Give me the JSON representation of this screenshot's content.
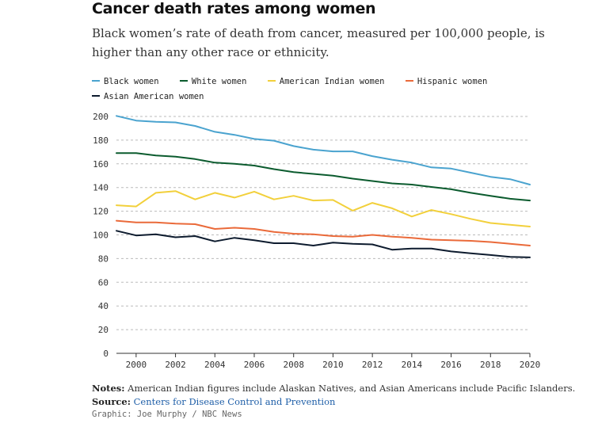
{
  "title": "Cancer death rates among women",
  "subtitle": "Black women’s rate of death from cancer, measured per 100,000 people, is higher than any other race or ethnicity.",
  "notes": {
    "notes_label": "Notes:",
    "notes_text": " American Indian figures include Alaskan Natives, and Asian Americans include Pacific Islanders.",
    "source_label": "Source:",
    "source_text": "Centers for Disease Control and Prevention"
  },
  "credit": "Graphic: Joe Murphy / NBC News",
  "chart_data": {
    "type": "line",
    "title": "Cancer death rates among women",
    "xlabel": "",
    "ylabel": "",
    "xlim": [
      1999,
      2020
    ],
    "ylim": [
      0,
      200
    ],
    "x_ticks": [
      2000,
      2002,
      2004,
      2006,
      2008,
      2010,
      2012,
      2014,
      2016,
      2018,
      2020
    ],
    "y_ticks": [
      0,
      20,
      40,
      60,
      80,
      100,
      120,
      140,
      160,
      180,
      200
    ],
    "grid": true,
    "legend_position": "top",
    "x": [
      1999,
      2000,
      2001,
      2002,
      2003,
      2004,
      2005,
      2006,
      2007,
      2008,
      2009,
      2010,
      2011,
      2012,
      2013,
      2014,
      2015,
      2016,
      2017,
      2018,
      2019,
      2020
    ],
    "series": [
      {
        "name": "Black women",
        "color": "#4aa3cf",
        "values": [
          200.5,
          196.5,
          195.5,
          195,
          192,
          187,
          184.5,
          181,
          179.5,
          175,
          172,
          170.5,
          170.5,
          166.5,
          163.5,
          161,
          157,
          156,
          152.5,
          149,
          147,
          142.5
        ]
      },
      {
        "name": "White women",
        "color": "#0b5b2e",
        "values": [
          169,
          169,
          167,
          166,
          164,
          161,
          160,
          158.5,
          155.5,
          153,
          151.5,
          150,
          147.5,
          145.5,
          143.5,
          142.5,
          140.5,
          138.5,
          135.5,
          133,
          130.5,
          129
        ]
      },
      {
        "name": "American Indian women",
        "color": "#f2d03b",
        "values": [
          125,
          124,
          135.5,
          137,
          130,
          135.5,
          131.5,
          136.5,
          130,
          133,
          129,
          129.5,
          120.5,
          127,
          122.5,
          115.5,
          121,
          117.5,
          113.5,
          110,
          108.5,
          107
        ]
      },
      {
        "name": "Hispanic women",
        "color": "#ea6a3a",
        "values": [
          112,
          110.5,
          110.5,
          109.5,
          109,
          105,
          106,
          105,
          102.5,
          101,
          100.5,
          99,
          98.5,
          100,
          98.5,
          97.5,
          96,
          95.5,
          95,
          94,
          92.5,
          91
        ]
      },
      {
        "name": "Asian American women",
        "color": "#0d1b2e",
        "values": [
          103.5,
          99.5,
          100.5,
          98,
          99,
          94.5,
          97.5,
          95.5,
          93,
          93,
          91,
          93.5,
          92.5,
          92,
          87.5,
          88.5,
          88.5,
          86,
          84.5,
          83,
          81.5,
          81
        ]
      }
    ]
  }
}
